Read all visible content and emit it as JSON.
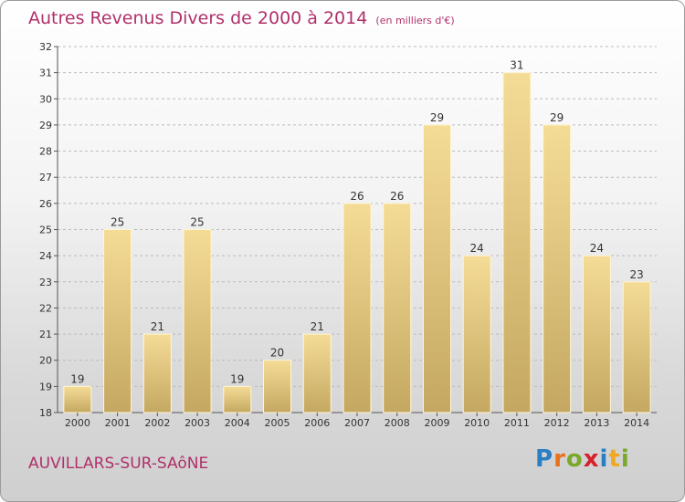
{
  "title": "Autres Revenus Divers de 2000 à 2014",
  "subtitle": "(en milliers d'€)",
  "town": "AUVILLARS-SUR-SAôNE",
  "logo": {
    "text": "Proxiti",
    "letter_colors": [
      "#2a7fc4",
      "#e8711c",
      "#79a82a",
      "#d6202b",
      "#2a7fc4",
      "#f0a820",
      "#79a82a"
    ]
  },
  "colors": {
    "title": "#b0306a",
    "bar_light": "#f5dc96",
    "bar_dark": "#c4a862",
    "axis": "#555555",
    "grid": "#bbbbbb"
  },
  "chart_data": {
    "type": "bar",
    "categories": [
      "2000",
      "2001",
      "2002",
      "2003",
      "2004",
      "2005",
      "2006",
      "2007",
      "2008",
      "2009",
      "2010",
      "2011",
      "2012",
      "2013",
      "2014"
    ],
    "values": [
      19,
      25,
      21,
      25,
      19,
      20,
      21,
      26,
      26,
      29,
      24,
      31,
      29,
      24,
      23
    ],
    "data_labels": [
      "19",
      "25",
      "21",
      "25",
      "19",
      "20",
      "21",
      "26",
      "26",
      "29",
      "24",
      "31",
      "29",
      "24",
      "23"
    ],
    "title": "Autres Revenus Divers de 2000 à 2014",
    "subtitle": "(en milliers d'€)",
    "xlabel": "",
    "ylabel": "",
    "ylim": [
      18,
      32
    ],
    "yticks": [
      18,
      19,
      20,
      21,
      22,
      23,
      24,
      25,
      26,
      27,
      28,
      29,
      30,
      31,
      32
    ],
    "grid": true
  }
}
